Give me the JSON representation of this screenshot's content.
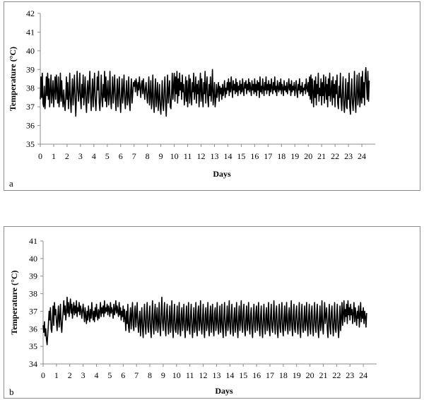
{
  "chart_data": [
    {
      "id": "a",
      "type": "line",
      "panel_label": "a",
      "xlabel": "Days",
      "ylabel": "Temperature (°C)",
      "xlim": [
        0,
        25
      ],
      "ylim": [
        35,
        42
      ],
      "x_ticks": [
        0,
        1,
        2,
        3,
        4,
        5,
        6,
        7,
        8,
        9,
        10,
        11,
        12,
        13,
        14,
        15,
        16,
        17,
        18,
        19,
        20,
        21,
        22,
        23,
        24
      ],
      "y_ticks": [
        35,
        36,
        37,
        38,
        39,
        40,
        41,
        42
      ],
      "grid": false,
      "line_color": "#000000",
      "sampling_interval_days": 0.05,
      "series": [
        {
          "start_day": 0,
          "values": [
            37.4,
            38.6,
            37.5,
            38.8,
            37.2,
            37.0,
            38.1,
            36.9,
            37.5,
            38.6,
            37.6,
            38.8,
            37.4,
            38.5,
            37.0,
            37.9,
            38.7,
            37.2,
            37.7,
            38.4,
            37.0,
            37.8,
            38.6,
            37.4,
            38.7,
            37.9,
            37.2,
            38.6,
            37.0,
            37.6,
            38.8,
            37.3,
            38.4,
            37.5,
            37.0,
            37.9,
            37.2,
            36.8,
            37.5,
            38.6,
            37.4,
            38.3,
            36.9,
            37.6,
            38.8,
            37.3,
            36.7,
            37.8,
            38.5,
            37.1,
            37.9,
            38.7,
            37.4,
            36.5,
            37.6,
            38.9,
            38.0,
            37.3,
            37.8,
            38.8,
            37.4,
            36.9,
            38.2,
            37.5,
            38.7,
            37.1,
            37.8,
            38.6,
            37.3,
            36.7,
            37.9,
            38.4,
            37.2,
            38.0,
            38.9,
            37.6,
            36.8,
            37.7,
            38.5,
            37.0,
            37.9,
            38.8,
            37.4,
            36.8,
            37.5,
            38.6,
            37.9,
            38.9,
            37.2,
            36.8,
            37.6,
            38.7,
            37.4,
            37.0,
            38.2,
            37.5,
            38.9,
            37.3,
            38.6,
            37.0,
            37.8,
            38.4,
            37.1,
            37.6,
            38.9,
            37.4,
            36.9,
            37.8,
            38.6,
            37.2,
            37.9,
            38.7,
            37.5,
            36.8,
            37.7,
            38.5,
            37.0,
            37.8,
            38.6,
            37.3,
            36.7,
            37.6,
            38.5,
            37.2,
            37.9,
            38.7,
            37.4,
            36.9,
            37.8,
            38.4,
            37.1,
            37.5,
            38.6,
            37.3,
            36.8,
            37.9,
            38.5,
            37.2,
            37.7,
            38.3,
            38.1,
            38.4,
            37.8,
            38.5,
            38.2,
            37.6,
            38.3,
            37.9,
            38.6,
            38.0,
            37.5,
            38.2,
            38.4,
            37.7,
            38.5,
            37.9,
            37.4,
            38.0,
            38.3,
            37.6,
            37.2,
            37.9,
            38.6,
            37.1,
            37.6,
            38.4,
            36.9,
            37.5,
            38.7,
            37.2,
            36.7,
            37.8,
            38.5,
            37.0,
            37.6,
            38.3,
            36.8,
            37.4,
            38.2,
            37.0,
            36.6,
            37.5,
            38.4,
            37.1,
            36.8,
            37.9,
            38.6,
            37.3,
            36.5,
            37.6,
            38.7,
            37.2,
            37.9,
            38.4,
            37.0,
            36.9,
            37.7,
            38.8,
            37.4,
            38.1,
            38.8,
            37.3,
            38.6,
            37.7,
            38.9,
            37.2,
            38.5,
            37.6,
            38.8,
            37.9,
            38.3,
            37.4,
            38.7,
            37.8,
            38.2,
            37.1,
            37.6,
            38.6,
            37.3,
            38.4,
            37.0,
            37.9,
            38.7,
            37.2,
            38.5,
            37.6,
            37.1,
            38.3,
            37.8,
            38.8,
            37.4,
            37.9,
            38.6,
            37.2,
            38.2,
            37.7,
            38.4,
            37.0,
            37.9,
            38.8,
            37.3,
            38.5,
            37.6,
            37.0,
            38.3,
            37.7,
            38.9,
            37.2,
            38.1,
            38.6,
            37.4,
            37.0,
            38.2,
            37.6,
            38.6,
            37.3,
            37.9,
            39.0,
            37.1,
            37.6,
            38.3,
            37.0,
            37.4,
            38.2,
            37.5,
            37.9,
            38.3,
            37.3,
            38.1,
            37.7,
            38.0,
            37.4,
            38.2,
            37.6,
            37.9,
            38.4,
            37.5,
            38.0,
            37.7,
            38.3,
            37.9,
            38.5,
            37.6,
            38.3,
            37.8,
            38.6,
            38.0,
            37.5,
            38.4,
            37.9,
            38.2,
            37.7,
            38.5,
            37.8,
            38.3,
            37.6,
            38.1,
            37.9,
            38.4,
            37.7,
            38.2,
            37.8,
            38.5,
            37.9,
            37.6,
            38.3,
            38.0,
            38.4,
            37.7,
            38.2,
            37.9,
            38.5,
            37.8,
            38.3,
            38.0,
            37.6,
            38.4,
            37.9,
            38.2,
            37.7,
            38.5,
            37.8,
            38.2,
            37.6,
            38.4,
            37.9,
            38.3,
            37.5,
            38.6,
            37.8,
            38.1,
            37.7,
            38.5,
            38.0,
            37.6,
            38.3,
            37.9,
            38.6,
            37.7,
            38.2,
            37.9,
            38.4,
            37.6,
            38.2,
            37.8,
            38.5,
            38.0,
            37.7,
            38.3,
            37.9,
            38.6,
            37.8,
            38.1,
            37.6,
            38.4,
            38.0,
            37.8,
            38.3,
            37.9,
            38.5,
            37.7,
            38.2,
            38.0,
            37.6,
            38.4,
            37.9,
            38.1,
            37.8,
            38.3,
            37.7,
            38.0,
            38.5,
            37.9,
            38.2,
            37.6,
            38.4,
            37.8,
            38.1,
            37.9,
            38.3,
            37.6,
            38.0,
            38.4,
            37.8,
            37.5,
            38.2,
            37.9,
            38.5,
            37.7,
            38.1,
            37.8,
            38.3,
            37.6,
            38.0,
            37.9,
            38.2,
            37.7,
            38.5,
            38.0,
            37.8,
            38.3,
            37.6,
            38.6,
            37.4,
            38.7,
            37.2,
            38.5,
            37.8,
            37.0,
            38.4,
            37.5,
            38.6,
            37.1,
            38.2,
            37.7,
            38.8,
            37.3,
            38.0,
            37.6,
            38.5,
            37.1,
            38.3,
            37.6,
            38.7,
            37.2,
            37.9,
            38.6,
            37.4,
            38.2,
            37.0,
            38.5,
            37.6,
            38.8,
            37.3,
            37.8,
            38.4,
            37.1,
            38.6,
            37.5,
            38.2,
            37.0,
            38.4,
            37.7,
            38.7,
            37.2,
            36.9,
            38.1,
            37.5,
            38.8,
            37.3,
            36.8,
            37.9,
            38.6,
            37.1,
            36.7,
            37.6,
            38.5,
            37.0,
            36.9,
            38.3,
            37.4,
            38.8,
            37.0,
            36.6,
            37.8,
            38.5,
            37.2,
            36.8,
            37.6,
            38.9,
            37.3,
            36.7,
            38.0,
            38.7,
            37.1,
            37.6,
            38.8,
            37.0,
            37.4,
            38.6,
            37.2,
            38.9,
            37.5,
            38.3,
            37.1,
            38.7,
            39.1,
            38.2,
            37.4,
            38.9,
            37.3,
            38.4
          ]
        }
      ]
    },
    {
      "id": "b",
      "type": "line",
      "panel_label": "b",
      "xlabel": "Days",
      "ylabel": "Temperature (°C)",
      "xlim": [
        0,
        25
      ],
      "ylim": [
        34,
        41
      ],
      "x_ticks": [
        0,
        1,
        2,
        3,
        4,
        5,
        6,
        7,
        8,
        9,
        10,
        11,
        12,
        13,
        14,
        15,
        16,
        17,
        18,
        19,
        20,
        21,
        22,
        23,
        24
      ],
      "y_ticks": [
        34,
        35,
        36,
        37,
        38,
        39,
        40,
        41
      ],
      "grid": false,
      "line_color": "#000000",
      "sampling_interval_days": 0.05,
      "series": [
        {
          "start_day": 0,
          "values": [
            36.2,
            35.8,
            36.4,
            35.6,
            36.0,
            35.4,
            35.1,
            35.7,
            36.3,
            37.0,
            36.5,
            37.2,
            36.0,
            35.8,
            36.6,
            37.3,
            36.2,
            37.5,
            36.8,
            37.1,
            36.4,
            35.9,
            36.7,
            37.3,
            36.1,
            36.6,
            37.4,
            36.2,
            35.8,
            36.5,
            37.0,
            37.6,
            36.8,
            37.3,
            36.5,
            37.0,
            37.8,
            36.9,
            37.5,
            36.7,
            37.2,
            37.7,
            36.9,
            37.4,
            36.6,
            37.1,
            37.5,
            36.8,
            37.3,
            36.9,
            37.6,
            36.7,
            37.2,
            37.0,
            37.5,
            36.8,
            37.3,
            37.1,
            36.6,
            37.0,
            37.4,
            36.9,
            36.4,
            37.2,
            36.7,
            36.3,
            37.0,
            36.5,
            37.3,
            36.8,
            36.4,
            37.1,
            36.6,
            37.5,
            36.9,
            36.5,
            37.0,
            36.4,
            37.2,
            36.7,
            37.4,
            36.8,
            36.5,
            37.1,
            36.6,
            37.0,
            37.5,
            36.7,
            37.2,
            36.9,
            37.3,
            36.7,
            37.6,
            36.9,
            37.2,
            37.0,
            37.4,
            36.8,
            37.3,
            37.1,
            36.7,
            37.5,
            36.9,
            37.2,
            37.0,
            36.6,
            37.4,
            36.8,
            37.1,
            37.6,
            36.9,
            37.3,
            37.0,
            36.7,
            37.5,
            36.8,
            37.2,
            36.5,
            37.0,
            36.7,
            37.3,
            36.4,
            37.1,
            36.6,
            35.9,
            37.0,
            36.3,
            37.4,
            36.1,
            35.8,
            36.6,
            37.2,
            36.0,
            36.8,
            37.5,
            36.2,
            35.9,
            36.9,
            37.3,
            36.1,
            36.7,
            37.5,
            36.3,
            35.8,
            36.5,
            37.0,
            35.6,
            36.4,
            37.2,
            36.0,
            35.5,
            36.6,
            37.4,
            36.2,
            35.7,
            36.8,
            37.5,
            36.1,
            35.8,
            36.7,
            37.3,
            36.0,
            35.5,
            36.6,
            37.6,
            36.2,
            35.7,
            36.9,
            37.4,
            35.9,
            36.5,
            37.2,
            35.8,
            36.3,
            37.5,
            36.1,
            35.6,
            36.8,
            37.8,
            36.4,
            35.9,
            36.7,
            37.5,
            36.0,
            35.6,
            36.9,
            37.4,
            36.2,
            35.7,
            36.6,
            37.3,
            35.8,
            36.4,
            37.6,
            36.1,
            35.5,
            36.7,
            37.4,
            36.0,
            35.8,
            36.5,
            37.3,
            35.7,
            36.3,
            37.5,
            36.0,
            35.6,
            36.8,
            37.2,
            35.9,
            36.4,
            37.4,
            36.1,
            35.5,
            36.6,
            37.3,
            35.9,
            36.2,
            37.5,
            36.0,
            35.7,
            36.8,
            37.4,
            36.1,
            35.5,
            36.5,
            37.2,
            35.8,
            36.3,
            37.5,
            36.0,
            35.6,
            36.9,
            37.3,
            35.9,
            36.4,
            37.6,
            36.1,
            35.7,
            36.6,
            37.4,
            36.0,
            35.5,
            36.8,
            37.2,
            35.9,
            36.3,
            37.5,
            36.1,
            35.6,
            36.7,
            37.3,
            35.8,
            36.5,
            37.4,
            36.0,
            35.6,
            36.9,
            37.2,
            35.9,
            36.4,
            37.5,
            36.1,
            35.7,
            36.6,
            37.3,
            35.8,
            36.3,
            37.4,
            36.0,
            35.5,
            36.7,
            37.5,
            36.2,
            35.6,
            36.5,
            37.3,
            35.9,
            36.4,
            37.6,
            36.1,
            35.7,
            36.8,
            37.4,
            36.0,
            35.6,
            36.6,
            37.2,
            35.8,
            36.4,
            37.5,
            36.1,
            35.5,
            36.7,
            37.3,
            35.9,
            36.5,
            37.6,
            36.2,
            35.8,
            36.9,
            37.4,
            36.0,
            35.6,
            36.6,
            37.3,
            35.9,
            36.4,
            37.5,
            36.1,
            35.7,
            36.8,
            37.2,
            36.0,
            35.5,
            36.6,
            37.4,
            36.2,
            35.8,
            36.9,
            37.3,
            35.9,
            36.4,
            37.5,
            36.1,
            35.6,
            36.7,
            37.3,
            36.0,
            35.5,
            36.5,
            37.4,
            36.2,
            35.7,
            36.8,
            37.2,
            35.9,
            36.3,
            37.5,
            36.0,
            35.6,
            36.7,
            37.4,
            36.1,
            35.8,
            36.6,
            37.6,
            36.2,
            35.7,
            36.9,
            37.3,
            36.0,
            35.5,
            36.5,
            37.4,
            36.1,
            35.8,
            36.8,
            37.5,
            36.0,
            35.6,
            36.6,
            37.3,
            35.9,
            36.4,
            37.5,
            36.2,
            35.7,
            36.8,
            37.2,
            35.9,
            36.5,
            37.6,
            36.1,
            35.6,
            36.7,
            37.4,
            36.0,
            35.8,
            36.9,
            37.3,
            36.2,
            35.7,
            36.6,
            37.5,
            36.0,
            35.5,
            36.8,
            37.4,
            36.1,
            35.8,
            36.5,
            37.3,
            35.9,
            36.4,
            37.5,
            36.2,
            35.6,
            36.7,
            37.4,
            36.0,
            35.7,
            36.9,
            37.3,
            36.1,
            35.6,
            36.6,
            37.5,
            36.2,
            35.8,
            36.8,
            37.4,
            36.0,
            35.5,
            36.5,
            37.3,
            35.9,
            36.4,
            37.6,
            36.1,
            35.7,
            36.7,
            37.5,
            36.3,
            36.8,
            37.2,
            36.0,
            35.5,
            36.6,
            37.4,
            36.1,
            35.7,
            36.9,
            37.3,
            36.2,
            35.6,
            36.5,
            37.5,
            36.0,
            35.8,
            36.7,
            37.4,
            36.1,
            35.5,
            36.4,
            37.3,
            35.9,
            36.6,
            37.5,
            36.2,
            36.9,
            37.6,
            36.4,
            37.1,
            36.7,
            37.4,
            36.3,
            37.6,
            36.8,
            37.2,
            36.5,
            37.4,
            36.8,
            37.1,
            36.3,
            36.9,
            37.5,
            36.4,
            37.2,
            36.7,
            36.2,
            37.0,
            36.6,
            37.3,
            36.1,
            36.8,
            37.5,
            36.4,
            37.0,
            36.6,
            37.2,
            36.3,
            37.0,
            36.7,
            36.1,
            36.9
          ]
        }
      ]
    }
  ]
}
